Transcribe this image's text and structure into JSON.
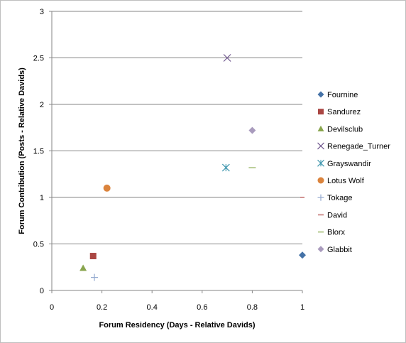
{
  "chart_data": {
    "type": "scatter",
    "xlabel": "Forum Residency (Days - Relative Davids)",
    "ylabel": "Forum Contribution (Posts - Relative Davids)",
    "xlim": [
      0,
      1
    ],
    "ylim": [
      0,
      3
    ],
    "x_ticks": [
      "0",
      "0.2",
      "0.4",
      "0.6",
      "0.8",
      "1"
    ],
    "y_ticks": [
      "0",
      "0.5",
      "1",
      "1.5",
      "2",
      "2.5",
      "3"
    ],
    "gridlines": "horizontal",
    "legend_position": "right",
    "series": [
      {
        "name": "Fournine",
        "marker": "diamond",
        "color": "#4572a7",
        "x": 1.0,
        "y": 0.38
      },
      {
        "name": "Sandurez",
        "marker": "square",
        "color": "#aa4643",
        "x": 0.165,
        "y": 0.37
      },
      {
        "name": "Devilsclub",
        "marker": "triangle",
        "color": "#89a54e",
        "x": 0.125,
        "y": 0.24
      },
      {
        "name": "Renegade_Turner",
        "marker": "x",
        "color": "#71588f",
        "x": 0.7,
        "y": 2.5
      },
      {
        "name": "Grayswandir",
        "marker": "star",
        "color": "#4198af",
        "x": 0.695,
        "y": 1.32
      },
      {
        "name": "Lotus Wolf",
        "marker": "circle",
        "color": "#db843d",
        "x": 0.22,
        "y": 1.1
      },
      {
        "name": "Tokage",
        "marker": "plus",
        "color": "#93a9cf",
        "x": 0.17,
        "y": 0.14
      },
      {
        "name": "David",
        "marker": "dash",
        "color": "#d19392",
        "x": 1.0,
        "y": 1.0
      },
      {
        "name": "Blorx",
        "marker": "dash",
        "color": "#b9cd96",
        "x": 0.8,
        "y": 1.32
      },
      {
        "name": "Glabbit",
        "marker": "diamond",
        "color": "#a99bbd",
        "x": 0.8,
        "y": 1.72
      }
    ]
  }
}
